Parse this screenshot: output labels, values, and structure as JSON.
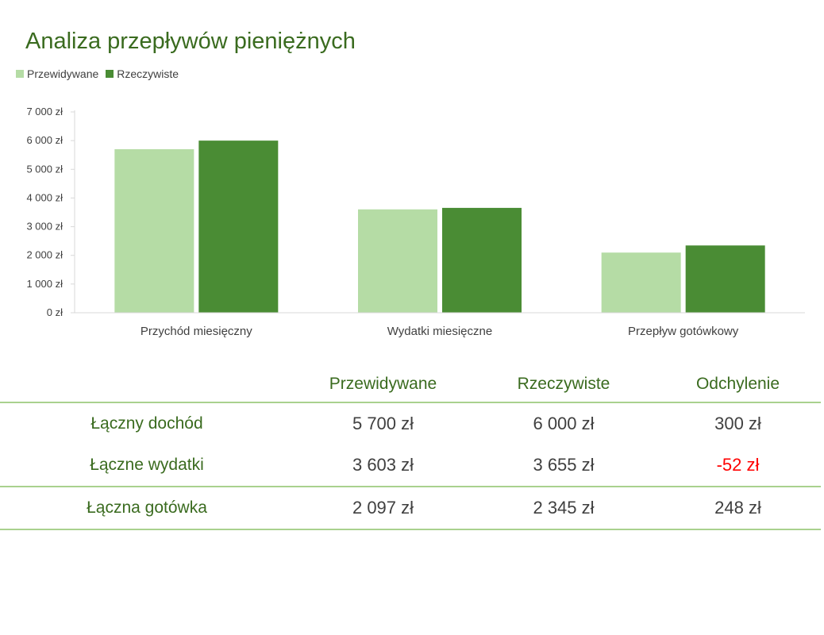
{
  "chart_data": {
    "type": "bar",
    "title": "Analiza przepływów pieniężnych",
    "categories": [
      "Przychód miesięczny",
      "Wydatki miesięczne",
      "Przepływ gotówkowy"
    ],
    "series": [
      {
        "name": "Przewidywane",
        "values": [
          5700,
          3603,
          2097
        ],
        "color": "#b5dca5"
      },
      {
        "name": "Rzeczywiste",
        "values": [
          6000,
          3655,
          2345
        ],
        "color": "#4a8c34"
      }
    ],
    "yticks": [
      "0 zł",
      "1 000 zł",
      "2 000 zł",
      "3 000 zł",
      "4 000 zł",
      "5 000 zł",
      "6 000 zł",
      "7 000 zł"
    ],
    "ylim": [
      0,
      7000
    ],
    "xlabel": "",
    "ylabel": "",
    "grid": false,
    "legend_position": "top-left"
  },
  "table": {
    "headers": [
      "",
      "Przewidywane",
      "Rzeczywiste",
      "Odchylenie"
    ],
    "rows": [
      {
        "label": "Łączny dochód",
        "values": [
          "5 700 zł",
          "6 000 zł",
          "300 zł"
        ],
        "negative": false
      },
      {
        "label": "Łączne wydatki",
        "values": [
          "3 603 zł",
          "3 655 zł",
          "-52 zł"
        ],
        "negative": true
      },
      {
        "label": "Łączna gotówka",
        "values": [
          "2 097 zł",
          "2 345 zł",
          "248 zł"
        ],
        "negative": false
      }
    ]
  },
  "colors": {
    "accent_title": "#3a6b1f",
    "negative": "#ff0000",
    "divider": "#a9d18e"
  }
}
